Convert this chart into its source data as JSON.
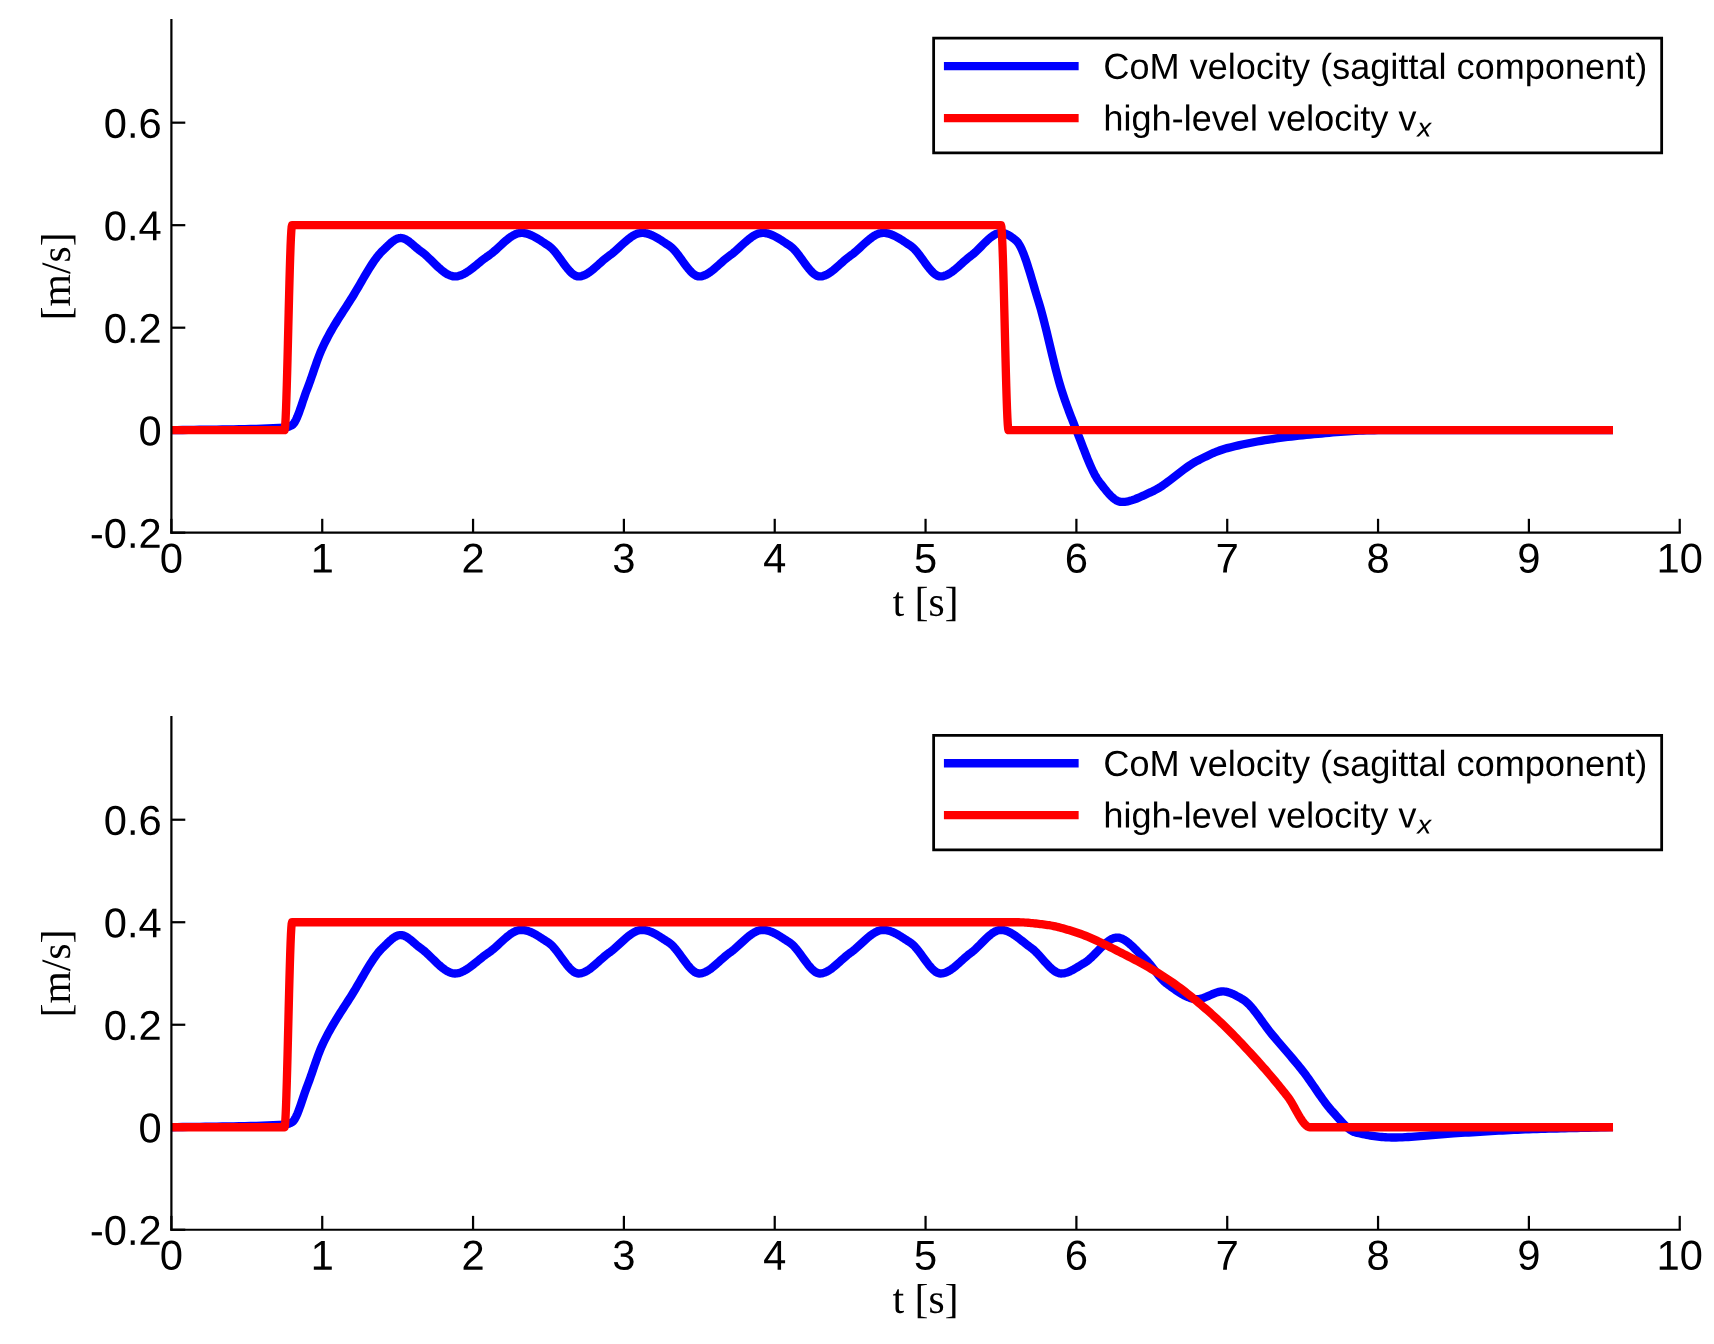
{
  "chart_data": [
    {
      "type": "line",
      "xlabel": "t [s]",
      "ylabel": "[m/s]",
      "xlim": [
        0,
        10
      ],
      "ylim": [
        -0.2,
        0.8
      ],
      "xticks": [
        0,
        1,
        2,
        3,
        4,
        5,
        6,
        7,
        8,
        9,
        10
      ],
      "yticks": [
        -0.2,
        0,
        0.2,
        0.4,
        0.6
      ],
      "grid": false,
      "legend": "top right",
      "marker": "none",
      "line_style": "solid",
      "series": [
        {
          "name": "CoM velocity (sagittal component)",
          "color": "#0000ff",
          "x": [
            0,
            0.75,
            0.8,
            0.9,
            1.0,
            1.2,
            1.4,
            1.52,
            1.65,
            1.88,
            2.1,
            2.32,
            2.5,
            2.7,
            2.9,
            3.12,
            3.3,
            3.5,
            3.7,
            3.92,
            4.1,
            4.3,
            4.5,
            4.72,
            4.9,
            5.1,
            5.3,
            5.5,
            5.6,
            5.75,
            5.9,
            6.0,
            6.15,
            6.3,
            6.5,
            6.8,
            7.0,
            7.5,
            8.0,
            9.53
          ],
          "values": [
            0,
            0.005,
            0.01,
            0.08,
            0.16,
            0.26,
            0.35,
            0.375,
            0.35,
            0.3,
            0.34,
            0.385,
            0.36,
            0.3,
            0.34,
            0.385,
            0.36,
            0.3,
            0.34,
            0.385,
            0.36,
            0.3,
            0.34,
            0.385,
            0.36,
            0.3,
            0.34,
            0.385,
            0.37,
            0.25,
            0.08,
            0.0,
            -0.1,
            -0.14,
            -0.12,
            -0.06,
            -0.035,
            -0.01,
            0,
            0
          ]
        },
        {
          "name": "high-level velocity v$_{x}$",
          "color": "#ff0000",
          "x": [
            0,
            0.75,
            0.8,
            5.5,
            5.55,
            9.53
          ],
          "values": [
            0,
            0,
            0.4,
            0.4,
            0,
            0
          ]
        }
      ]
    },
    {
      "type": "line",
      "xlabel": "t [s]",
      "ylabel": "[m/s]",
      "xlim": [
        0,
        10
      ],
      "ylim": [
        -0.2,
        0.8
      ],
      "xticks": [
        0,
        1,
        2,
        3,
        4,
        5,
        6,
        7,
        8,
        9,
        10
      ],
      "yticks": [
        -0.2,
        0,
        0.2,
        0.4,
        0.6
      ],
      "grid": false,
      "legend": "top right",
      "marker": "none",
      "line_style": "solid",
      "series": [
        {
          "name": "CoM velocity (sagittal component)",
          "color": "#0000ff",
          "x": [
            0,
            0.75,
            0.8,
            0.9,
            1.0,
            1.2,
            1.4,
            1.52,
            1.65,
            1.88,
            2.1,
            2.32,
            2.5,
            2.7,
            2.9,
            3.12,
            3.3,
            3.5,
            3.7,
            3.92,
            4.1,
            4.3,
            4.5,
            4.72,
            4.9,
            5.1,
            5.3,
            5.5,
            5.7,
            5.9,
            6.05,
            6.27,
            6.45,
            6.6,
            6.8,
            6.97,
            7.1,
            7.3,
            7.5,
            7.7,
            7.85,
            8.1,
            8.5,
            9.0,
            9.53
          ],
          "values": [
            0,
            0.005,
            0.01,
            0.08,
            0.16,
            0.26,
            0.35,
            0.375,
            0.35,
            0.3,
            0.34,
            0.385,
            0.36,
            0.3,
            0.34,
            0.385,
            0.36,
            0.3,
            0.34,
            0.385,
            0.36,
            0.3,
            0.34,
            0.385,
            0.36,
            0.3,
            0.34,
            0.385,
            0.35,
            0.3,
            0.32,
            0.37,
            0.33,
            0.28,
            0.25,
            0.265,
            0.25,
            0.18,
            0.11,
            0.03,
            -0.01,
            -0.02,
            -0.012,
            -0.004,
            0
          ]
        },
        {
          "name": "high-level velocity v$_{x}$",
          "color": "#ff0000",
          "x": [
            0,
            0.75,
            0.8,
            5.6,
            5.8,
            6.0,
            6.3,
            6.6,
            6.9,
            7.2,
            7.4,
            7.55,
            9.53
          ],
          "values": [
            0,
            0,
            0.4,
            0.4,
            0.395,
            0.38,
            0.34,
            0.29,
            0.22,
            0.13,
            0.06,
            0,
            0
          ]
        }
      ]
    }
  ]
}
